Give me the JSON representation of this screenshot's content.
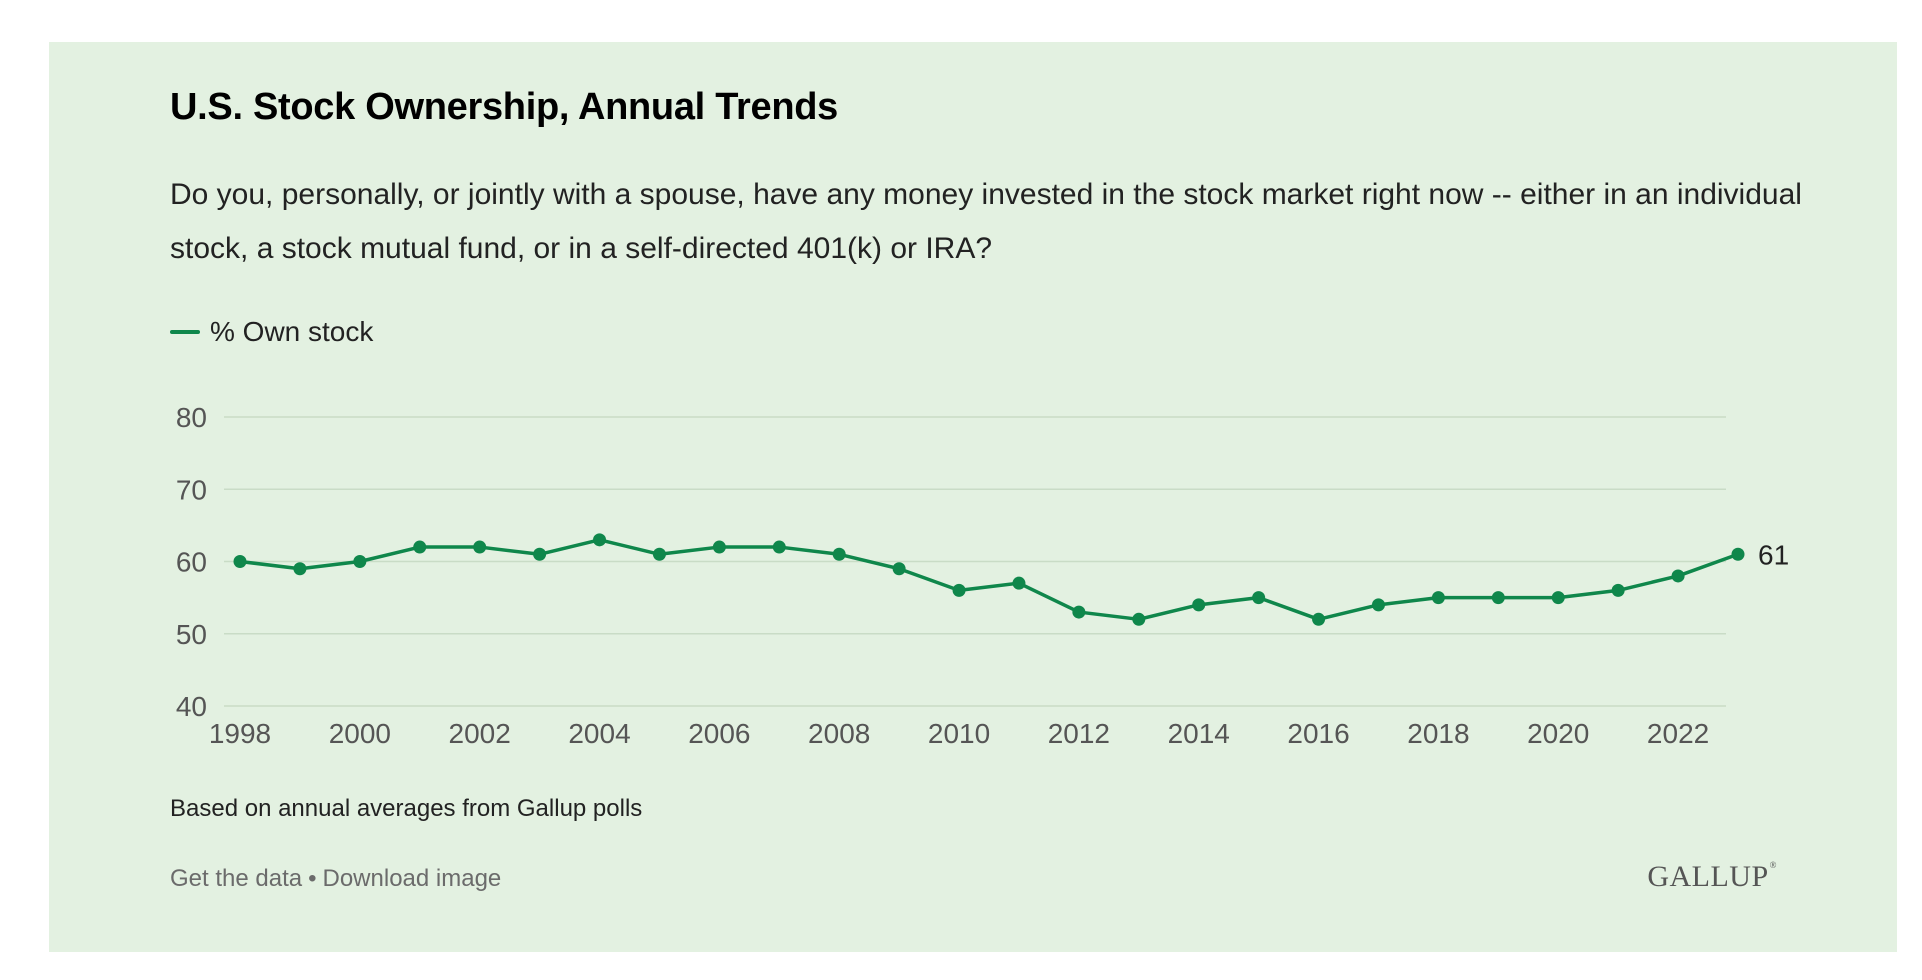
{
  "page": {
    "title": "U.S. Stock Ownership, Annual Trends",
    "question": "Do you, personally, or jointly with a spouse, have any money invested in the stock market right now -- either in an individual stock, a stock mutual fund, or in a self-directed 401(k) or IRA?",
    "footnote": "Based on annual averages from Gallup polls",
    "links": {
      "get_data": "Get the data",
      "separator": "•",
      "download": "Download image"
    },
    "logo": "GALLUP"
  },
  "colors": {
    "background": "#e3f1e1",
    "series": "#0f874b",
    "grid": "#c9dcc6",
    "tick_text": "#555555"
  },
  "chart_data": {
    "type": "line",
    "title": "U.S. Stock Ownership, Annual Trends",
    "xlabel": "",
    "ylabel": "",
    "ylim": [
      40,
      80
    ],
    "xlim": [
      1998,
      2023
    ],
    "yticks": [
      40,
      50,
      60,
      70,
      80
    ],
    "xticks": [
      1998,
      2000,
      2002,
      2004,
      2006,
      2008,
      2010,
      2012,
      2014,
      2016,
      2018,
      2020,
      2022
    ],
    "grid": true,
    "legend": "top-left",
    "x": [
      1998,
      1999,
      2000,
      2001,
      2002,
      2003,
      2004,
      2005,
      2006,
      2007,
      2008,
      2009,
      2010,
      2011,
      2012,
      2013,
      2014,
      2015,
      2016,
      2017,
      2018,
      2019,
      2020,
      2021,
      2022,
      2023
    ],
    "series": [
      {
        "name": "% Own stock",
        "values": [
          60,
          59,
          60,
          62,
          62,
          61,
          63,
          61,
          62,
          62,
          61,
          59,
          56,
          57,
          53,
          52,
          54,
          55,
          52,
          54,
          55,
          55,
          55,
          56,
          58,
          61
        ]
      }
    ],
    "end_label": "61"
  }
}
